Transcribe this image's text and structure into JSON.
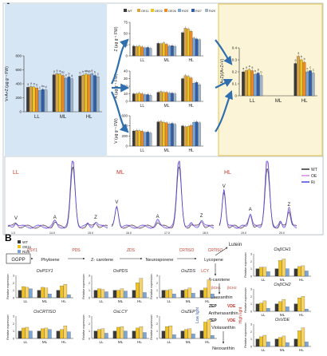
{
  "panel_labels": {
    "a": "A",
    "b": "B"
  },
  "colors": {
    "WT": "#3a3a3a",
    "OE11": "#d9a441",
    "OE22": "#f2c21b",
    "OE26": "#f08a1e",
    "Ri25": "#7aa6d8",
    "Ri27": "#2f5ea8",
    "Ri29": "#9fb4c8",
    "left_bg": "#d6e6f5",
    "right_bg": "#fbf4d6",
    "right_border": "#e9c44a",
    "red": "#c0392b",
    "blue": "#3b5ea8",
    "trace_WT": "#222222",
    "trace_OE": "#d17fe0",
    "trace_Ri": "#3b3bd6"
  },
  "chart_data": [
    {
      "id": "main_total",
      "type": "bar",
      "ylabel": "V+A+Z (µg g⁻¹ FW)",
      "categories": [
        "LL",
        "ML",
        "HL"
      ],
      "ylim": [
        0,
        800
      ],
      "ticks": [
        0,
        200,
        400,
        600,
        800
      ],
      "series": [
        {
          "name": "WT",
          "values": [
            350,
            530,
            510
          ]
        },
        {
          "name": "OE11",
          "values": [
            360,
            545,
            525
          ]
        },
        {
          "name": "OE22",
          "values": [
            355,
            540,
            540
          ]
        },
        {
          "name": "OE26",
          "values": [
            340,
            520,
            530
          ]
        },
        {
          "name": "Ri25",
          "values": [
            305,
            480,
            545
          ]
        },
        {
          "name": "Ri27",
          "values": [
            320,
            500,
            520
          ]
        },
        {
          "name": "Ri29",
          "values": [
            310,
            470,
            500
          ]
        }
      ],
      "sig_labels": [
        [
          "a",
          "a",
          "a",
          "b",
          "c",
          "bc",
          "d"
        ],
        [
          "a",
          "a",
          "a",
          "bc",
          "c",
          "b",
          "d"
        ],
        [
          "b",
          "b",
          "ab",
          "ab",
          "a",
          "b",
          "c"
        ]
      ]
    },
    {
      "id": "Z",
      "type": "bar",
      "ylabel": "Z (µg g⁻¹ FW)",
      "categories": [
        "LL",
        "ML",
        "HL"
      ],
      "ylim": [
        0,
        75
      ],
      "ticks": [
        0,
        25,
        50,
        75
      ],
      "series": [
        {
          "name": "WT",
          "values": [
            22,
            28,
            52
          ]
        },
        {
          "name": "OE11",
          "values": [
            21,
            27,
            62
          ]
        },
        {
          "name": "OE22",
          "values": [
            22,
            29,
            60
          ]
        },
        {
          "name": "OE26",
          "values": [
            20,
            26,
            55
          ]
        },
        {
          "name": "Ri25",
          "values": [
            18,
            22,
            40
          ]
        },
        {
          "name": "Ri27",
          "values": [
            19,
            23,
            38
          ]
        },
        {
          "name": "Ri29",
          "values": [
            17,
            21,
            36
          ]
        }
      ]
    },
    {
      "id": "A",
      "type": "bar",
      "ylabel": "A (µg g⁻¹ FW)",
      "categories": [
        "LL",
        "ML",
        "HL"
      ],
      "ylim": [
        0,
        40
      ],
      "ticks": [
        0,
        10,
        20,
        30,
        40
      ],
      "series": [
        {
          "name": "WT",
          "values": [
            10,
            12,
            30
          ]
        },
        {
          "name": "OE11",
          "values": [
            10,
            13,
            34
          ]
        },
        {
          "name": "OE22",
          "values": [
            11,
            12,
            33
          ]
        },
        {
          "name": "OE26",
          "values": [
            10,
            12,
            31
          ]
        },
        {
          "name": "Ri25",
          "values": [
            9,
            11,
            24
          ]
        },
        {
          "name": "Ri27",
          "values": [
            9,
            11,
            25
          ]
        },
        {
          "name": "Ri29",
          "values": [
            8,
            10,
            22
          ]
        }
      ]
    },
    {
      "id": "V",
      "type": "bar",
      "ylabel": "V (µg g⁻¹ FW)",
      "categories": [
        "LL",
        "ML",
        "HL"
      ],
      "ylim": [
        0,
        600
      ],
      "ticks": [
        0,
        200,
        400,
        600
      ],
      "series": [
        {
          "name": "WT",
          "values": [
            300,
            480,
            400
          ]
        },
        {
          "name": "OE11",
          "values": [
            310,
            490,
            380
          ]
        },
        {
          "name": "OE22",
          "values": [
            305,
            470,
            390
          ]
        },
        {
          "name": "OE26",
          "values": [
            295,
            460,
            410
          ]
        },
        {
          "name": "Ri25",
          "values": [
            270,
            440,
            470
          ]
        },
        {
          "name": "Ri27",
          "values": [
            280,
            450,
            480
          ]
        },
        {
          "name": "Ri29",
          "values": [
            260,
            430,
            460
          ]
        }
      ]
    },
    {
      "id": "deps",
      "type": "bar",
      "ylabel": "(A+Z)/(A+Z+V)",
      "categories": [
        "LL",
        "ML",
        "HL"
      ],
      "ylim": [
        0,
        0.4
      ],
      "ticks": [
        0,
        0.1,
        0.2,
        0.3,
        0.4
      ],
      "series": [
        {
          "name": "WT",
          "values": [
            0.2,
            0.0,
            0.27
          ]
        },
        {
          "name": "OE11",
          "values": [
            0.21,
            0.0,
            0.33
          ]
        },
        {
          "name": "OE22",
          "values": [
            0.22,
            0.0,
            0.3
          ]
        },
        {
          "name": "OE26",
          "values": [
            0.21,
            0.0,
            0.28
          ]
        },
        {
          "name": "Ri25",
          "values": [
            0.18,
            0.0,
            0.2
          ]
        },
        {
          "name": "Ri27",
          "values": [
            0.19,
            0.0,
            0.21
          ]
        },
        {
          "name": "Ri29",
          "values": [
            0.17,
            0.0,
            0.19
          ]
        }
      ],
      "sig_labels": [
        [
          "a",
          "a",
          "a",
          "a",
          "b",
          "b",
          "b"
        ],
        [
          "",
          "",
          "",
          "",
          "",
          "",
          ""
        ],
        [
          "a",
          "a",
          "b",
          "b",
          "c",
          "c",
          "c"
        ]
      ]
    },
    {
      "id": "hplc",
      "type": "line",
      "x_ticks": [
        "1.0",
        "14.0",
        "15.0",
        "16.0",
        "17.0",
        "18.0",
        "19.0",
        "20.0"
      ],
      "legend": [
        "WT",
        "OE",
        "Ri"
      ],
      "segments": [
        {
          "label": "LL",
          "peaks": [
            "V",
            "A",
            "Z"
          ]
        },
        {
          "label": "ML",
          "peaks": [
            "V",
            "A",
            "Z"
          ]
        },
        {
          "label": "HL",
          "peaks": [
            "V",
            "A",
            "Z"
          ]
        }
      ]
    }
  ],
  "pathway": {
    "nodes": [
      "GGPP",
      "Phytoene",
      "Z- carotene",
      "Neurosporene",
      "Lycopene",
      "Lutein",
      "β-carotene",
      "Zeaxanthin",
      "Antheraxanthin",
      "Violaxanthin",
      "Neoxanthin"
    ],
    "enzymes": [
      "PSY1",
      "PDS",
      "ZDS",
      "CRTISO",
      "LCY",
      "βCH1",
      "βCH2",
      "ZEP",
      "VDE",
      "ZEP",
      "VDE"
    ],
    "side_labels": {
      "low_light": "Low light",
      "high_light": "High light"
    }
  },
  "expression_charts": [
    {
      "title": "OsPSY1",
      "values": [
        [
          1.0,
          1.5,
          1.4,
          1.2
        ],
        [
          1.0,
          1.4,
          1.3,
          0.5
        ],
        [
          1.0,
          1.6,
          1.8,
          0.4
        ]
      ]
    },
    {
      "title": "OsPDS",
      "values": [
        [
          1.0,
          1.2,
          1.1,
          0.8
        ],
        [
          1.0,
          1.0,
          1.2,
          0.9
        ],
        [
          1.0,
          2.0,
          2.6,
          0.7
        ]
      ]
    },
    {
      "title": "OsZDS",
      "values": [
        [
          1.0,
          1.0,
          1.1,
          0.5
        ],
        [
          1.0,
          1.1,
          1.3,
          0.6
        ],
        [
          1.0,
          1.3,
          2.4,
          0.5
        ]
      ]
    },
    {
      "title": "OsCRTISO",
      "values": [
        [
          1.0,
          1.4,
          1.5,
          1.0
        ],
        [
          1.0,
          1.3,
          1.4,
          1.2
        ],
        [
          1.0,
          1.2,
          1.7,
          0.9
        ]
      ]
    },
    {
      "title": "OsLCY",
      "values": [
        [
          1.0,
          1.2,
          1.3,
          0.7
        ],
        [
          1.0,
          1.5,
          1.6,
          1.0
        ],
        [
          1.0,
          1.4,
          1.6,
          0.8
        ]
      ]
    },
    {
      "title": "OsZEP",
      "values": [
        [
          1.0,
          1.6,
          1.7,
          0.5
        ],
        [
          1.0,
          1.2,
          1.3,
          0.6
        ],
        [
          1.0,
          2.2,
          2.5,
          0.4
        ]
      ]
    },
    {
      "title": "OsβCH1",
      "values": [
        [
          1.0,
          1.2,
          1.2,
          0.6
        ],
        [
          1.0,
          2.1,
          2.3,
          1.0
        ],
        [
          1.0,
          1.3,
          1.4,
          0.7
        ]
      ]
    },
    {
      "title": "OsβCH2",
      "values": [
        [
          1.0,
          1.1,
          1.4,
          0.4
        ],
        [
          1.0,
          1.3,
          1.6,
          0.6
        ],
        [
          1.0,
          1.8,
          2.0,
          0.3
        ]
      ]
    },
    {
      "title": "OsVDE",
      "values": [
        [
          1.0,
          1.3,
          1.5,
          0.6
        ],
        [
          1.0,
          1.2,
          1.4,
          0.5
        ],
        [
          1.0,
          2.1,
          2.5,
          0.6
        ]
      ]
    }
  ],
  "expression_legend": [
    "WT",
    "OE11",
    "Ri25"
  ],
  "expression_ylabel": "Relative expression",
  "expression_categories": [
    "LL",
    "ML",
    "HL"
  ]
}
